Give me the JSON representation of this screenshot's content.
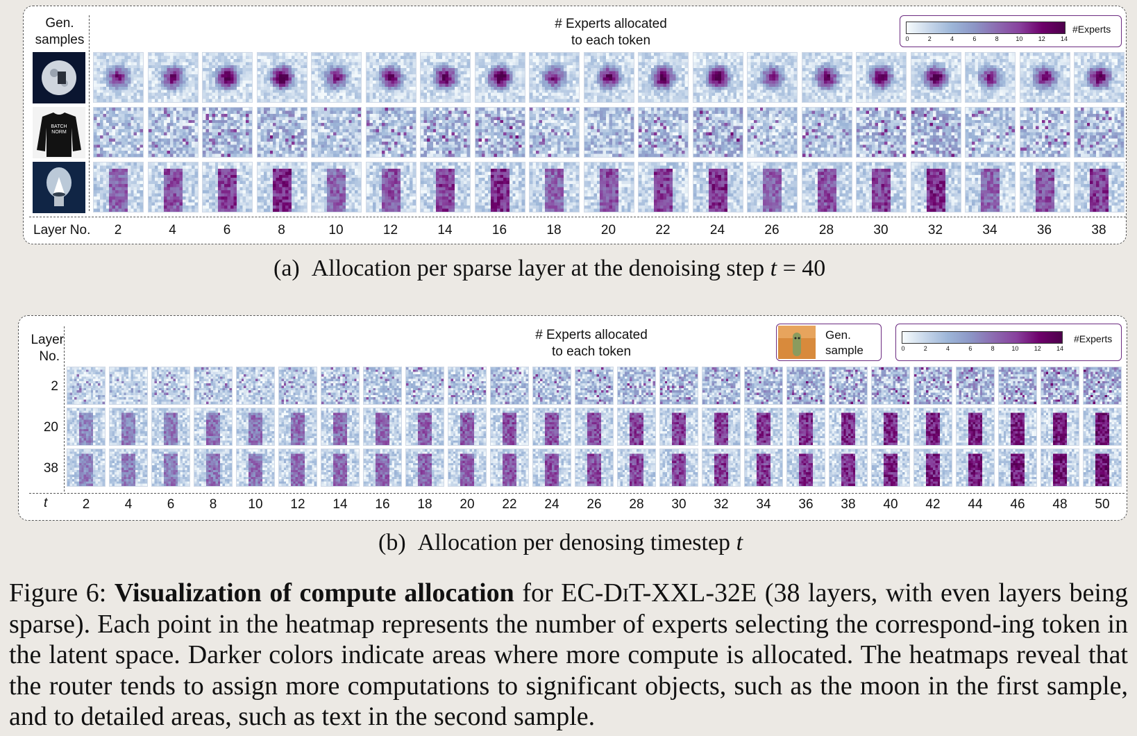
{
  "panel_a": {
    "gen_samples_label": "Gen.\nsamples",
    "title_line1": "# Experts allocated",
    "title_line2": "to each token",
    "legend_title": "#Experts",
    "legend_ticks": [
      "0",
      "2",
      "4",
      "6",
      "8",
      "10",
      "12",
      "14"
    ],
    "axis_label": "Layer No.",
    "layers": [
      "2",
      "4",
      "6",
      "8",
      "10",
      "12",
      "14",
      "16",
      "18",
      "20",
      "22",
      "24",
      "26",
      "28",
      "30",
      "32",
      "34",
      "36",
      "38"
    ],
    "samples": [
      {
        "name": "moon",
        "text": ""
      },
      {
        "name": "sweater",
        "text": "BATCH\nNORM"
      },
      {
        "name": "lightbulb",
        "text": ""
      }
    ],
    "caption_prefix": "(a)",
    "caption_text": "Allocation per sparse layer at the denoising step ",
    "caption_var": "t",
    "caption_eq": " = 40"
  },
  "panel_b": {
    "layer_label_line1": "Layer",
    "layer_label_line2": "No.",
    "title_line1": "# Experts allocated",
    "title_line2": "to each token",
    "gen_sample_label_line1": "Gen.",
    "gen_sample_label_line2": "sample",
    "legend_title": "#Experts",
    "legend_ticks": [
      "0",
      "2",
      "4",
      "6",
      "8",
      "10",
      "12",
      "14"
    ],
    "row_layers": [
      "2",
      "20",
      "38"
    ],
    "axis_label": "t",
    "timesteps": [
      "2",
      "4",
      "6",
      "8",
      "10",
      "12",
      "14",
      "16",
      "18",
      "20",
      "22",
      "24",
      "26",
      "28",
      "30",
      "32",
      "34",
      "36",
      "38",
      "40",
      "42",
      "44",
      "46",
      "48",
      "50"
    ],
    "caption_prefix": "(b)",
    "caption_text": "Allocation per denosing timestep ",
    "caption_var": "t"
  },
  "figure_caption": {
    "label": "Figure 6:",
    "bold": "Visualization of compute allocation",
    "for_text": " for EC-D",
    "small_caps": "i",
    "model_rest": "T-XXL-32E (38 layers, with even layers being sparse). Each point in the heatmap represents the number of experts selecting the correspond-ing token in the latent space. Darker colors indicate areas where more compute is allocated. The heatmaps reveal that the router tends to assign more computations to significant objects, such as the moon in the first sample, and to detailed areas, such as text in the second sample."
  },
  "colors": {
    "cmap": [
      "#f7fcfd",
      "#c7d7ea",
      "#9db6d8",
      "#8c96c6",
      "#8c6bb1",
      "#88419d",
      "#6e016b",
      "#4d004b"
    ],
    "panel_border": "#555555",
    "legend_border": "#6b2a80"
  }
}
